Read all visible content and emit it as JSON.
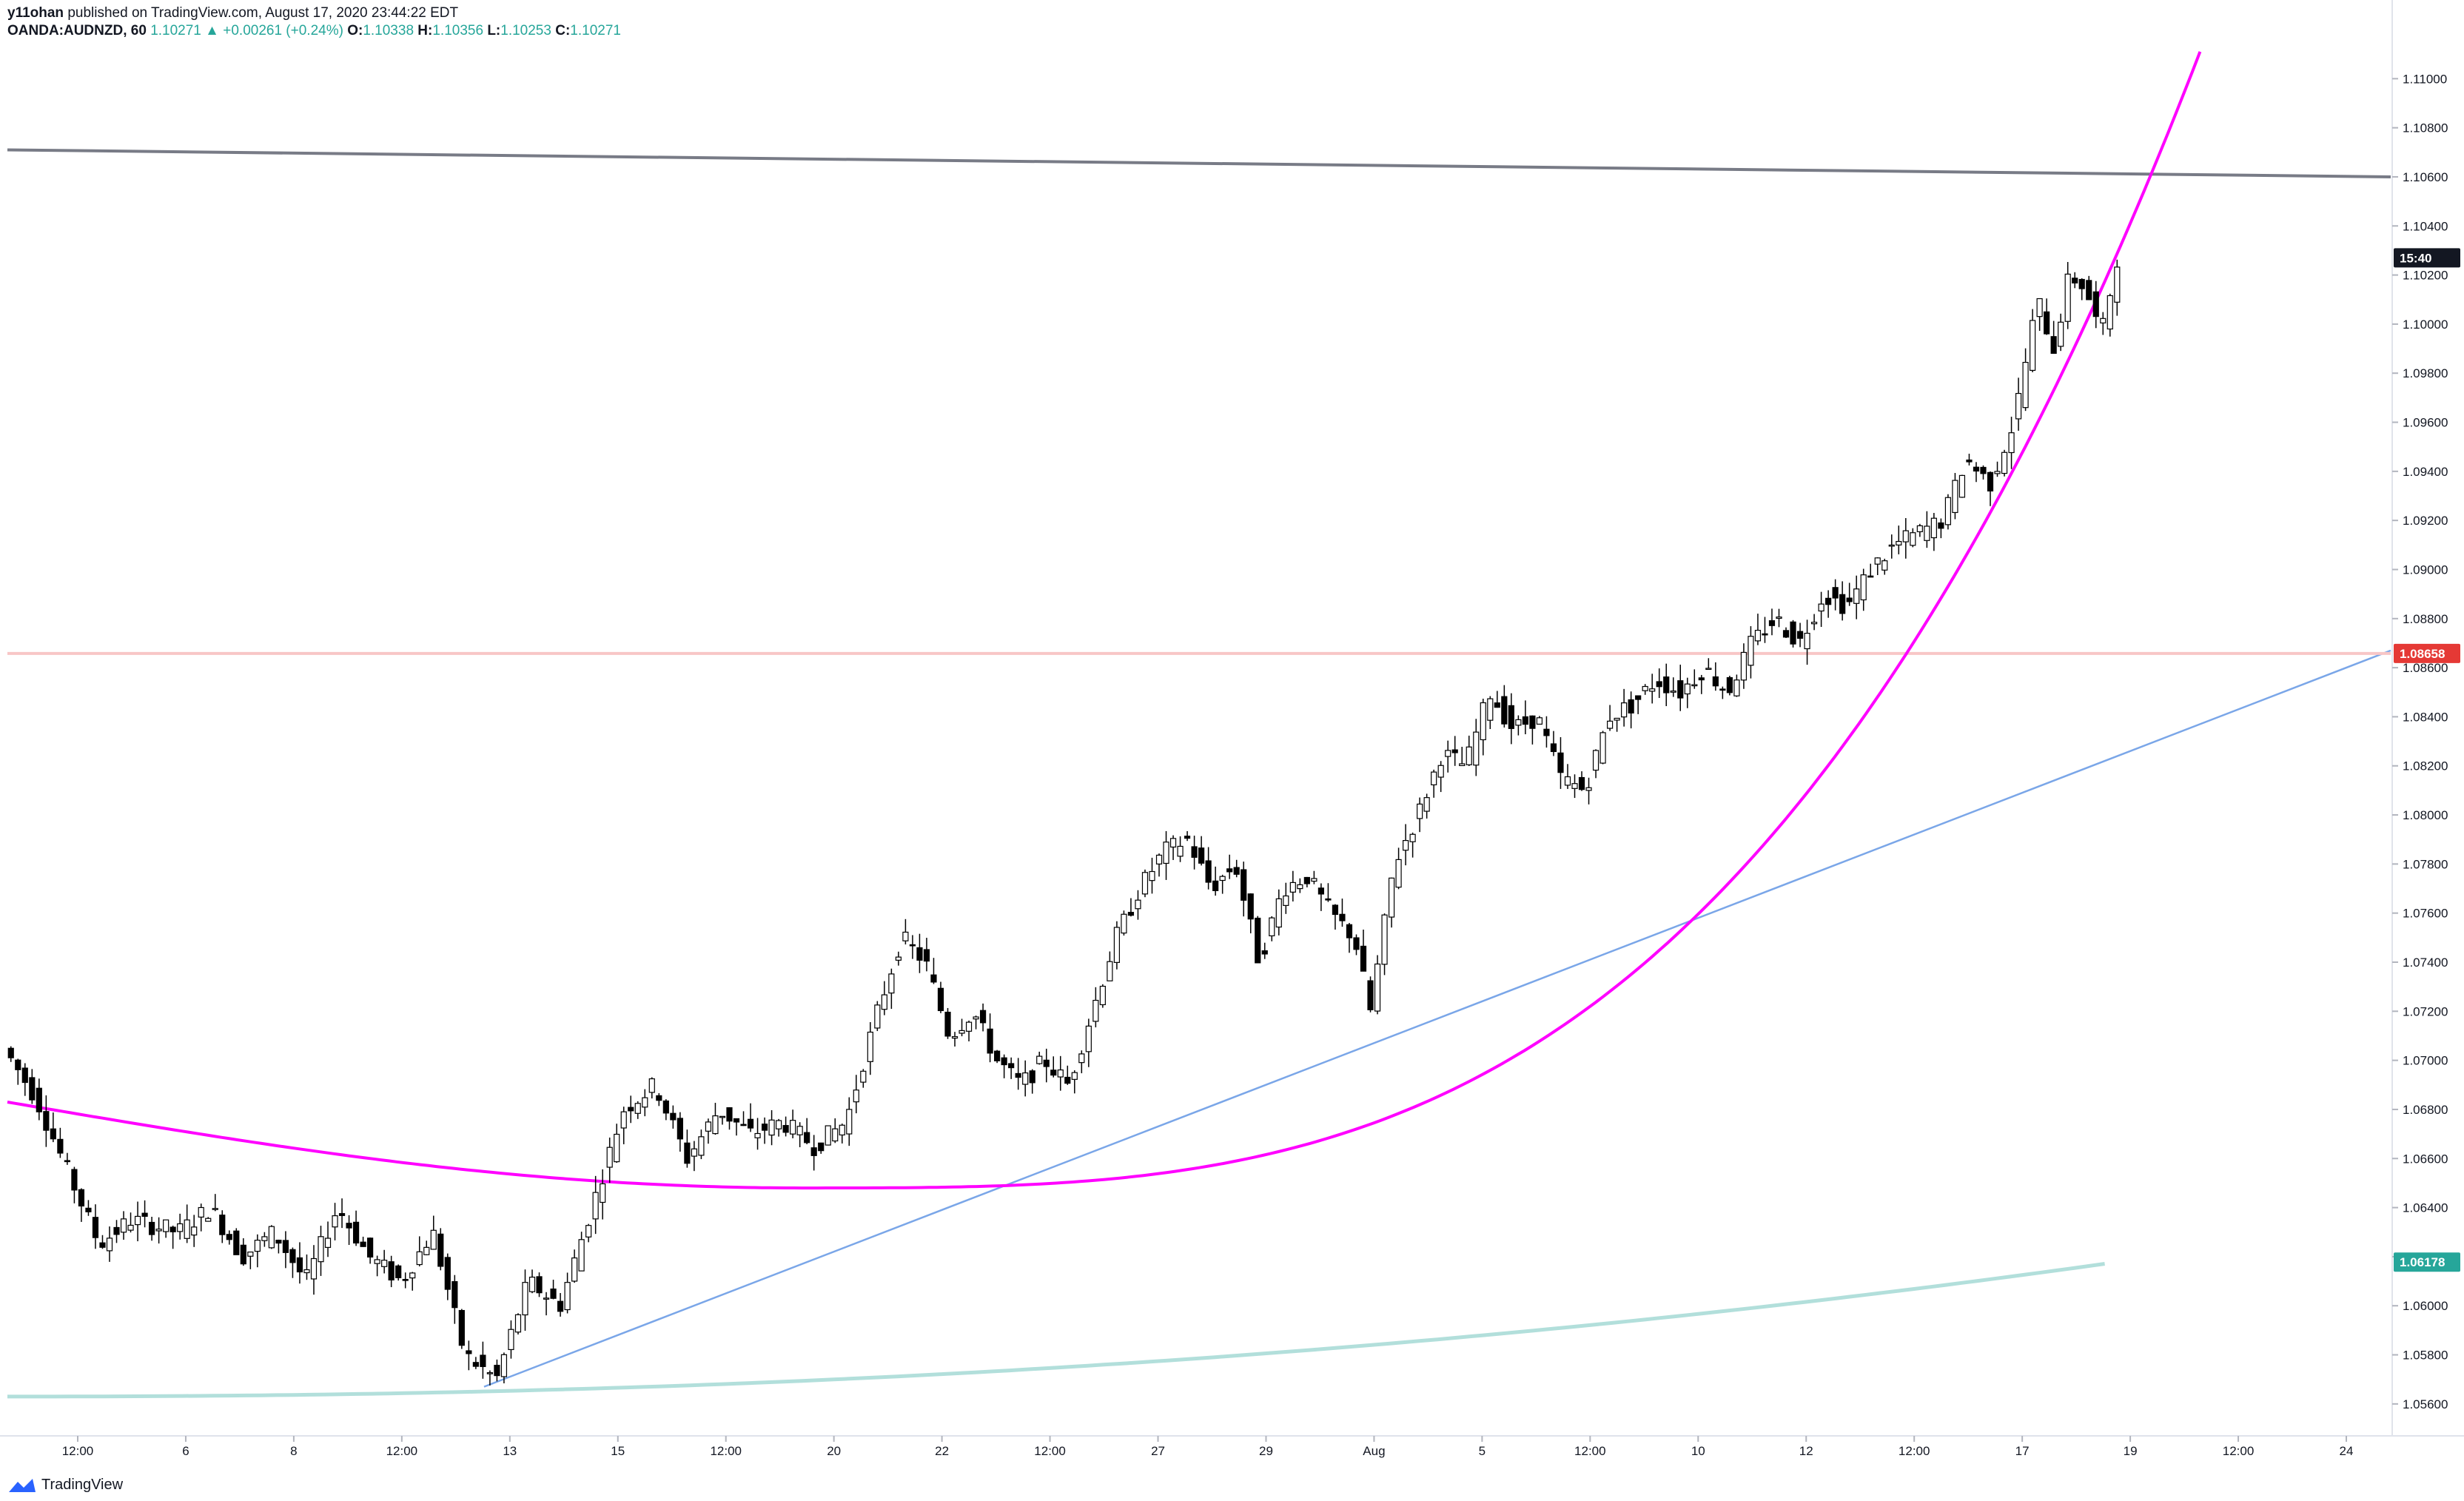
{
  "header": {
    "author": "y11ohan",
    "published": "published on TradingView.com, August 17, 2020 23:44:22 EDT",
    "symbol": "OANDA:AUDNZD, 60",
    "last": "1.10271",
    "arrow": "▲",
    "change": "+0.00261 (+0.24%)",
    "o_label": "O:",
    "o_value": "1.10338",
    "h_label": "H:",
    "h_value": "1.10356",
    "l_label": "L:",
    "l_value": "1.10253",
    "c_label": "C:",
    "c_value": "1.10271"
  },
  "footer": {
    "brand": "TradingView",
    "logo_icon": "tradingview-logo-icon"
  },
  "colors": {
    "up": "#26a69a",
    "magenta": "#ff00ff",
    "blue": "#7aa6e8",
    "gray": "#787b86",
    "ma": "#b2dfdb",
    "red": "#e53935",
    "red_line": "#f8c6c6"
  },
  "chart_data": {
    "type": "line",
    "series_type": "candlestick (OHLC, hourly)",
    "ylim": [
      1.055,
      1.112
    ],
    "y_ticks": [
      "1.11000",
      "1.10800",
      "1.10600",
      "1.10400",
      "1.10200",
      "1.10000",
      "1.09800",
      "1.09600",
      "1.09400",
      "1.09200",
      "1.09000",
      "1.08800",
      "1.08600",
      "1.08400",
      "1.08200",
      "1.08000",
      "1.07800",
      "1.07600",
      "1.07400",
      "1.07200",
      "1.07000",
      "1.06800",
      "1.06600",
      "1.06400",
      "1.06200",
      "1.06000",
      "1.05800",
      "1.05600"
    ],
    "x_ticks": [
      "12:00",
      "6",
      "8",
      "12:00",
      "13",
      "15",
      "12:00",
      "20",
      "22",
      "12:00",
      "27",
      "29",
      "Aug",
      "5",
      "12:00",
      "10",
      "12",
      "12:00",
      "17",
      "19",
      "12:00",
      "24"
    ],
    "price_tags": [
      {
        "label": "15:40",
        "value": 1.1027,
        "style": "black"
      },
      {
        "label": "1.08658",
        "value": 1.08658,
        "style": "red"
      },
      {
        "label": "1.06178",
        "value": 1.06178,
        "style": "green"
      }
    ],
    "price_path": [
      [
        0,
        1.0705
      ],
      [
        0.04,
        1.0685
      ],
      [
        0.08,
        1.0655
      ],
      [
        0.12,
        1.0625
      ],
      [
        0.16,
        1.0635
      ],
      [
        0.22,
        1.063
      ],
      [
        0.26,
        1.064
      ],
      [
        0.3,
        1.062
      ],
      [
        0.34,
        1.063
      ],
      [
        0.38,
        1.061
      ],
      [
        0.42,
        1.064
      ],
      [
        0.46,
        1.062
      ],
      [
        0.5,
        1.061
      ],
      [
        0.54,
        1.063
      ],
      [
        0.58,
        1.058
      ],
      [
        0.62,
        1.057
      ],
      [
        0.66,
        1.061
      ],
      [
        0.7,
        1.06
      ],
      [
        0.74,
        1.064
      ],
      [
        0.78,
        1.068
      ],
      [
        0.82,
        1.069
      ],
      [
        0.86,
        1.066
      ],
      [
        0.9,
        1.068
      ],
      [
        0.94,
        1.067
      ],
      [
        0.98,
        1.0675
      ],
      [
        1.02,
        1.0665
      ],
      [
        1.06,
        1.0675
      ],
      [
        1.1,
        1.072
      ],
      [
        1.13,
        1.075
      ],
      [
        1.16,
        1.074
      ],
      [
        1.19,
        1.071
      ],
      [
        1.22,
        1.072
      ],
      [
        1.25,
        1.07
      ],
      [
        1.28,
        1.069
      ],
      [
        1.31,
        1.07
      ],
      [
        1.34,
        1.069
      ],
      [
        1.37,
        1.072
      ],
      [
        1.4,
        1.075
      ],
      [
        1.43,
        1.077
      ],
      [
        1.46,
        1.0785
      ],
      [
        1.49,
        1.079
      ],
      [
        1.52,
        1.077
      ],
      [
        1.55,
        1.078
      ],
      [
        1.58,
        1.074
      ],
      [
        1.61,
        1.077
      ],
      [
        1.64,
        1.0775
      ],
      [
        1.67,
        1.076
      ],
      [
        1.7,
        1.075
      ],
      [
        1.72,
        1.072
      ],
      [
        1.75,
        1.078
      ],
      [
        1.78,
        1.08
      ],
      [
        1.81,
        1.0825
      ],
      [
        1.84,
        1.082
      ],
      [
        1.87,
        1.085
      ],
      [
        1.9,
        1.0835
      ],
      [
        1.93,
        1.084
      ],
      [
        1.96,
        1.0815
      ],
      [
        1.99,
        1.081
      ],
      [
        2.02,
        1.084
      ],
      [
        2.05,
        1.0845
      ],
      [
        2.08,
        1.0855
      ],
      [
        2.11,
        1.085
      ],
      [
        2.14,
        1.086
      ],
      [
        2.17,
        1.085
      ],
      [
        2.2,
        1.087
      ],
      [
        2.23,
        1.088
      ],
      [
        2.26,
        1.087
      ],
      [
        2.29,
        1.089
      ],
      [
        2.32,
        1.0885
      ],
      [
        2.35,
        1.09
      ],
      [
        2.38,
        1.091
      ],
      [
        2.41,
        1.0915
      ],
      [
        2.44,
        1.092
      ],
      [
        2.47,
        1.0945
      ],
      [
        2.5,
        1.0935
      ],
      [
        2.53,
        1.096
      ],
      [
        2.56,
        1.101
      ],
      [
        2.58,
        1.099
      ],
      [
        2.6,
        1.102
      ],
      [
        2.62,
        1.1015
      ],
      [
        2.64,
        1.0995
      ],
      [
        2.66,
        1.1027
      ]
    ],
    "lines": [
      {
        "name": "gray",
        "points": [
          [
            0,
            1.1071
          ],
          [
            3.0,
            1.106
          ]
        ]
      },
      {
        "name": "blue",
        "points": [
          [
            0.6,
            1.0567
          ],
          [
            3.0,
            1.0867
          ]
        ]
      },
      {
        "name": "red",
        "points": [
          [
            0,
            1.08658
          ],
          [
            3.0,
            1.08658
          ]
        ]
      }
    ]
  }
}
